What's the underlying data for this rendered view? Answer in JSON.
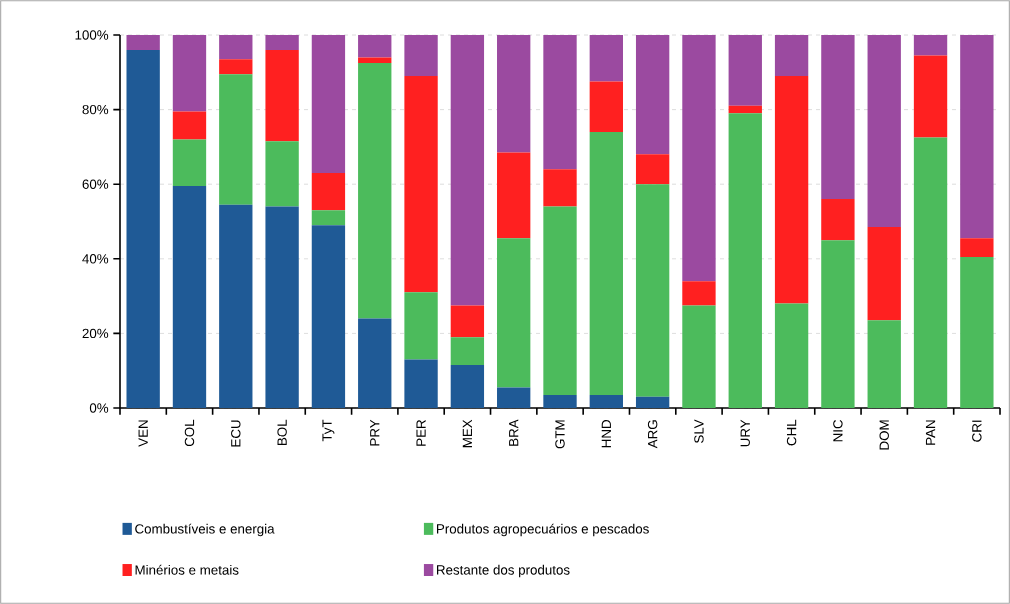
{
  "chart_data": {
    "type": "bar",
    "stacked": true,
    "categories": [
      "VEN",
      "COL",
      "ECU",
      "BOL",
      "TyT",
      "PRY",
      "PER",
      "MEX",
      "BRA",
      "GTM",
      "HND",
      "ARG",
      "SLV",
      "URY",
      "CHL",
      "NIC",
      "DOM",
      "PAN",
      "CRI"
    ],
    "series": [
      {
        "name": "Combustíveis e energia",
        "color": "#1f5a96",
        "values": [
          96,
          59.5,
          54.5,
          54,
          49,
          24,
          13,
          11.5,
          5.5,
          3.5,
          3.5,
          3,
          0,
          0,
          0,
          0,
          0,
          0,
          0
        ]
      },
      {
        "name": "Produtos agropecuários e pescados",
        "color": "#4cbb5c",
        "values": [
          0,
          12.5,
          35,
          17.5,
          4,
          68.5,
          18,
          7.5,
          40,
          50.5,
          70.5,
          57,
          27.5,
          79,
          28,
          45,
          23.5,
          72.5,
          40.5
        ]
      },
      {
        "name": "Minérios e metais",
        "color": "#ff2020",
        "values": [
          0,
          7.5,
          4,
          24.5,
          10,
          1.5,
          58,
          8.5,
          23,
          10,
          13.5,
          8,
          6.5,
          2,
          61,
          11,
          25,
          22,
          5
        ]
      },
      {
        "name": "Restante dos produtos",
        "color": "#9b4aa0",
        "values": [
          4,
          20.5,
          6.5,
          4,
          37,
          6,
          11,
          72.5,
          31.5,
          36,
          12.5,
          32,
          66,
          19,
          11,
          44,
          51.5,
          5.5,
          54.5
        ]
      }
    ],
    "ylim": [
      0,
      100
    ],
    "yticks": [
      {
        "value": 0,
        "label": "0%"
      },
      {
        "value": 20,
        "label": "20%"
      },
      {
        "value": 40,
        "label": "40%"
      },
      {
        "value": 60,
        "label": "60%"
      },
      {
        "value": 80,
        "label": "80%"
      },
      {
        "value": 100,
        "label": "100%"
      }
    ],
    "grid": "y",
    "legend": "bottom"
  }
}
